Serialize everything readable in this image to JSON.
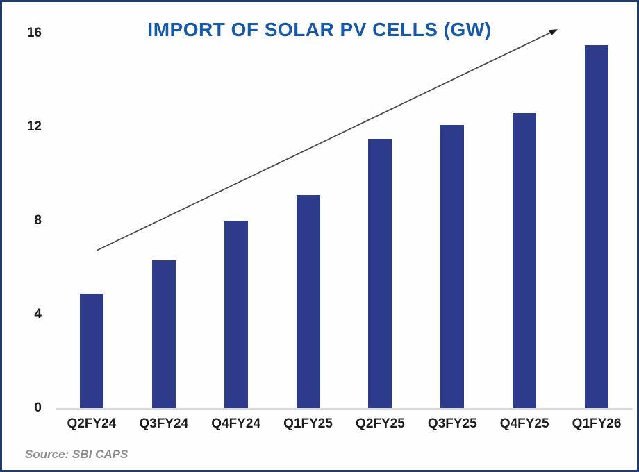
{
  "title": "IMPORT OF SOLAR PV CELLS (GW)",
  "source": "Source: SBI CAPS",
  "colors": {
    "bar": "#2e3a8a",
    "title": "#1659a8",
    "border": "#1f3a6e",
    "axis_line": "#d9d9d9",
    "arrow": "#474747",
    "labels": "#1d1d1d",
    "source_text": "#8c8c8c"
  },
  "chart_data": {
    "type": "bar",
    "categories": [
      "Q2FY24",
      "Q3FY24",
      "Q4FY24",
      "Q1FY25",
      "Q2FY25",
      "Q3FY25",
      "Q4FY25",
      "Q1FY26"
    ],
    "values": [
      4.9,
      6.3,
      8.0,
      9.1,
      11.5,
      12.1,
      12.6,
      15.5
    ],
    "title": "IMPORT OF SOLAR PV CELLS (GW)",
    "xlabel": "",
    "ylabel": "",
    "ylim": [
      0,
      16
    ],
    "yticks": [
      0,
      4,
      8,
      12,
      16
    ],
    "grid": false,
    "legend": "none",
    "annotations": [
      "upward trend arrow from first bar region to top right"
    ]
  }
}
